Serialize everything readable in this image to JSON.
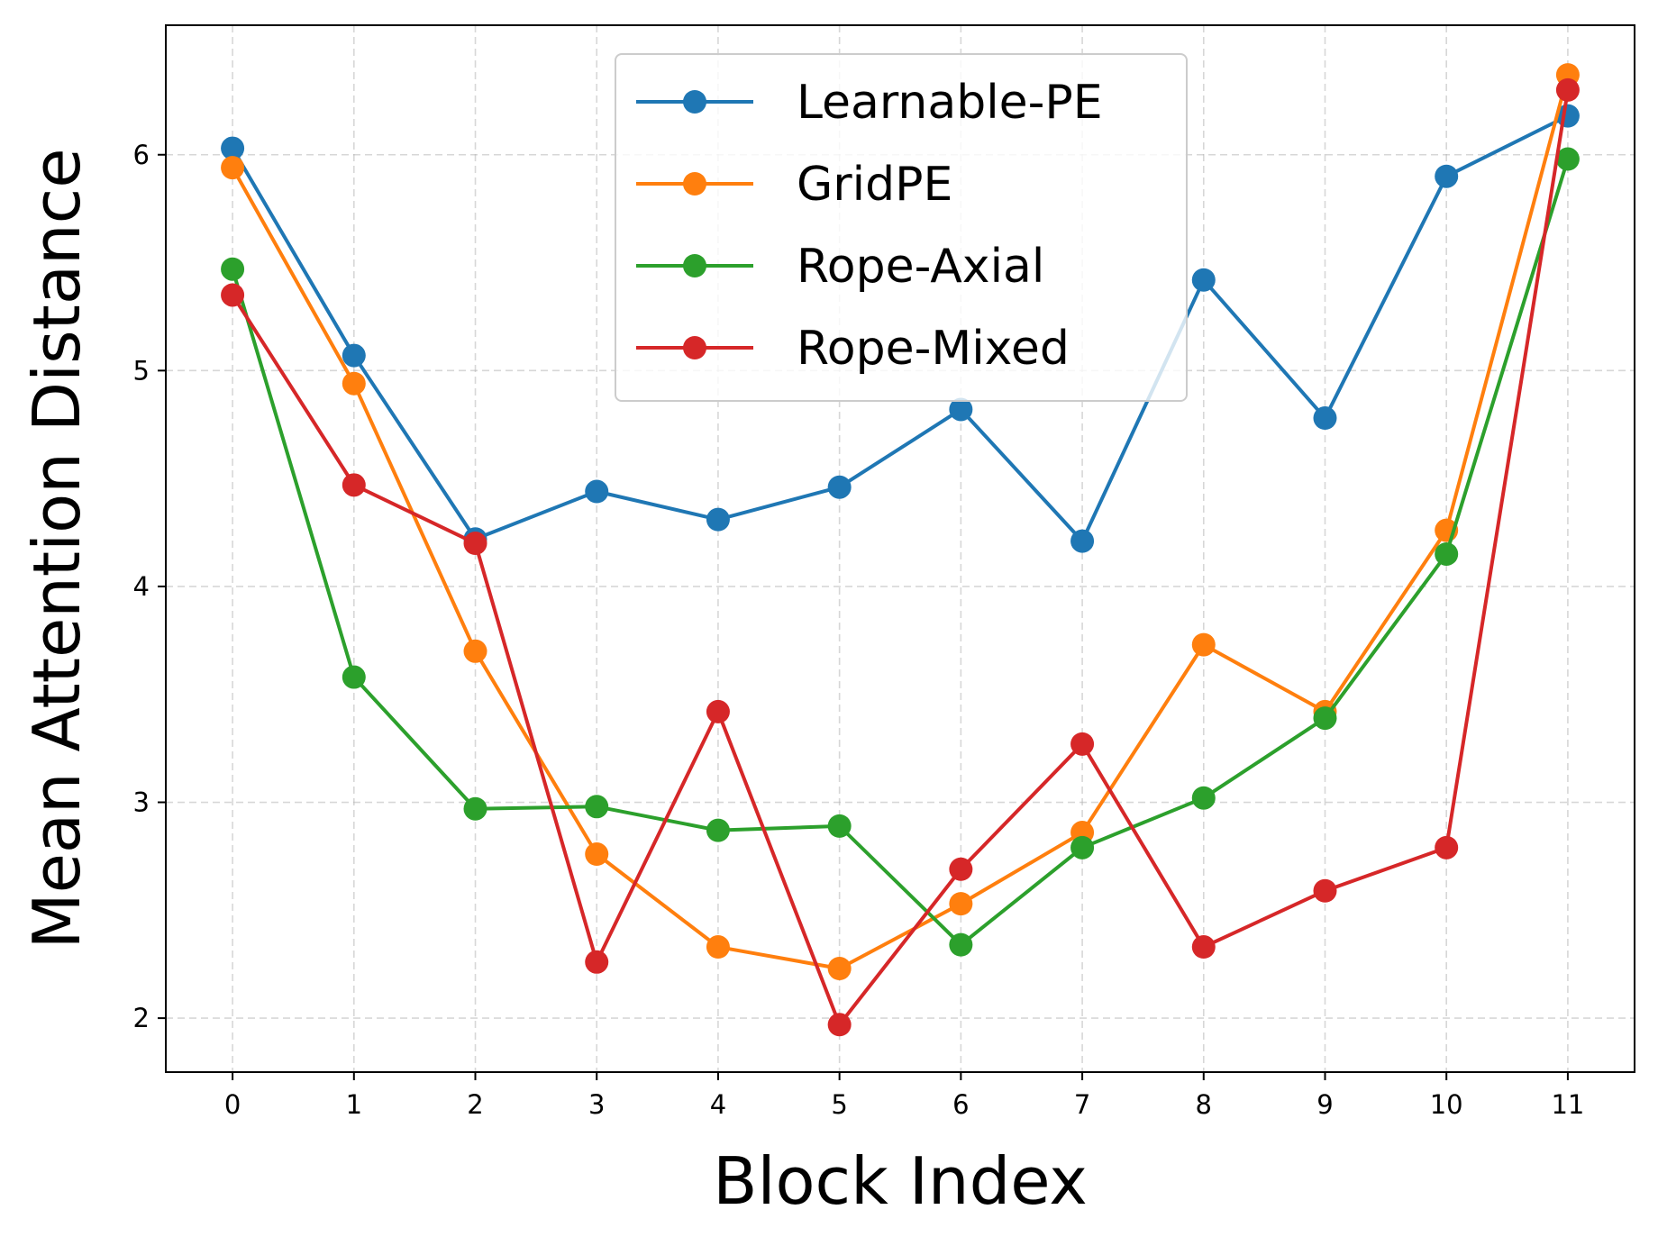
{
  "chart_data": {
    "type": "line",
    "title": "",
    "xlabel": "Block Index",
    "ylabel": "Mean Attention Distance",
    "x": [
      0,
      1,
      2,
      3,
      4,
      5,
      6,
      7,
      8,
      9,
      10,
      11
    ],
    "xticks": [
      "0",
      "1",
      "2",
      "3",
      "4",
      "5",
      "6",
      "7",
      "8",
      "9",
      "10",
      "11"
    ],
    "yticks": [
      "2",
      "3",
      "4",
      "5",
      "6"
    ],
    "xlim": [
      -0.55,
      11.55
    ],
    "ylim": [
      1.75,
      6.6
    ],
    "grid": true,
    "legend_position": "top-center",
    "series": [
      {
        "name": "Learnable-PE",
        "color": "#1f77b4",
        "values": [
          6.03,
          5.07,
          4.22,
          4.44,
          4.31,
          4.46,
          4.82,
          4.21,
          5.42,
          4.78,
          5.9,
          6.18
        ]
      },
      {
        "name": "GridPE",
        "color": "#ff7f0e",
        "values": [
          5.94,
          4.94,
          3.7,
          2.76,
          2.33,
          2.23,
          2.53,
          2.86,
          3.73,
          3.42,
          4.26,
          6.37
        ]
      },
      {
        "name": "Rope-Axial",
        "color": "#2ca02c",
        "values": [
          5.47,
          3.58,
          2.97,
          2.98,
          2.87,
          2.89,
          2.34,
          2.79,
          3.02,
          3.39,
          4.15,
          5.98
        ]
      },
      {
        "name": "Rope-Mixed",
        "color": "#d62728",
        "values": [
          5.35,
          4.47,
          4.2,
          2.26,
          3.42,
          1.97,
          2.69,
          3.27,
          2.33,
          2.59,
          2.79,
          6.3
        ]
      }
    ]
  }
}
